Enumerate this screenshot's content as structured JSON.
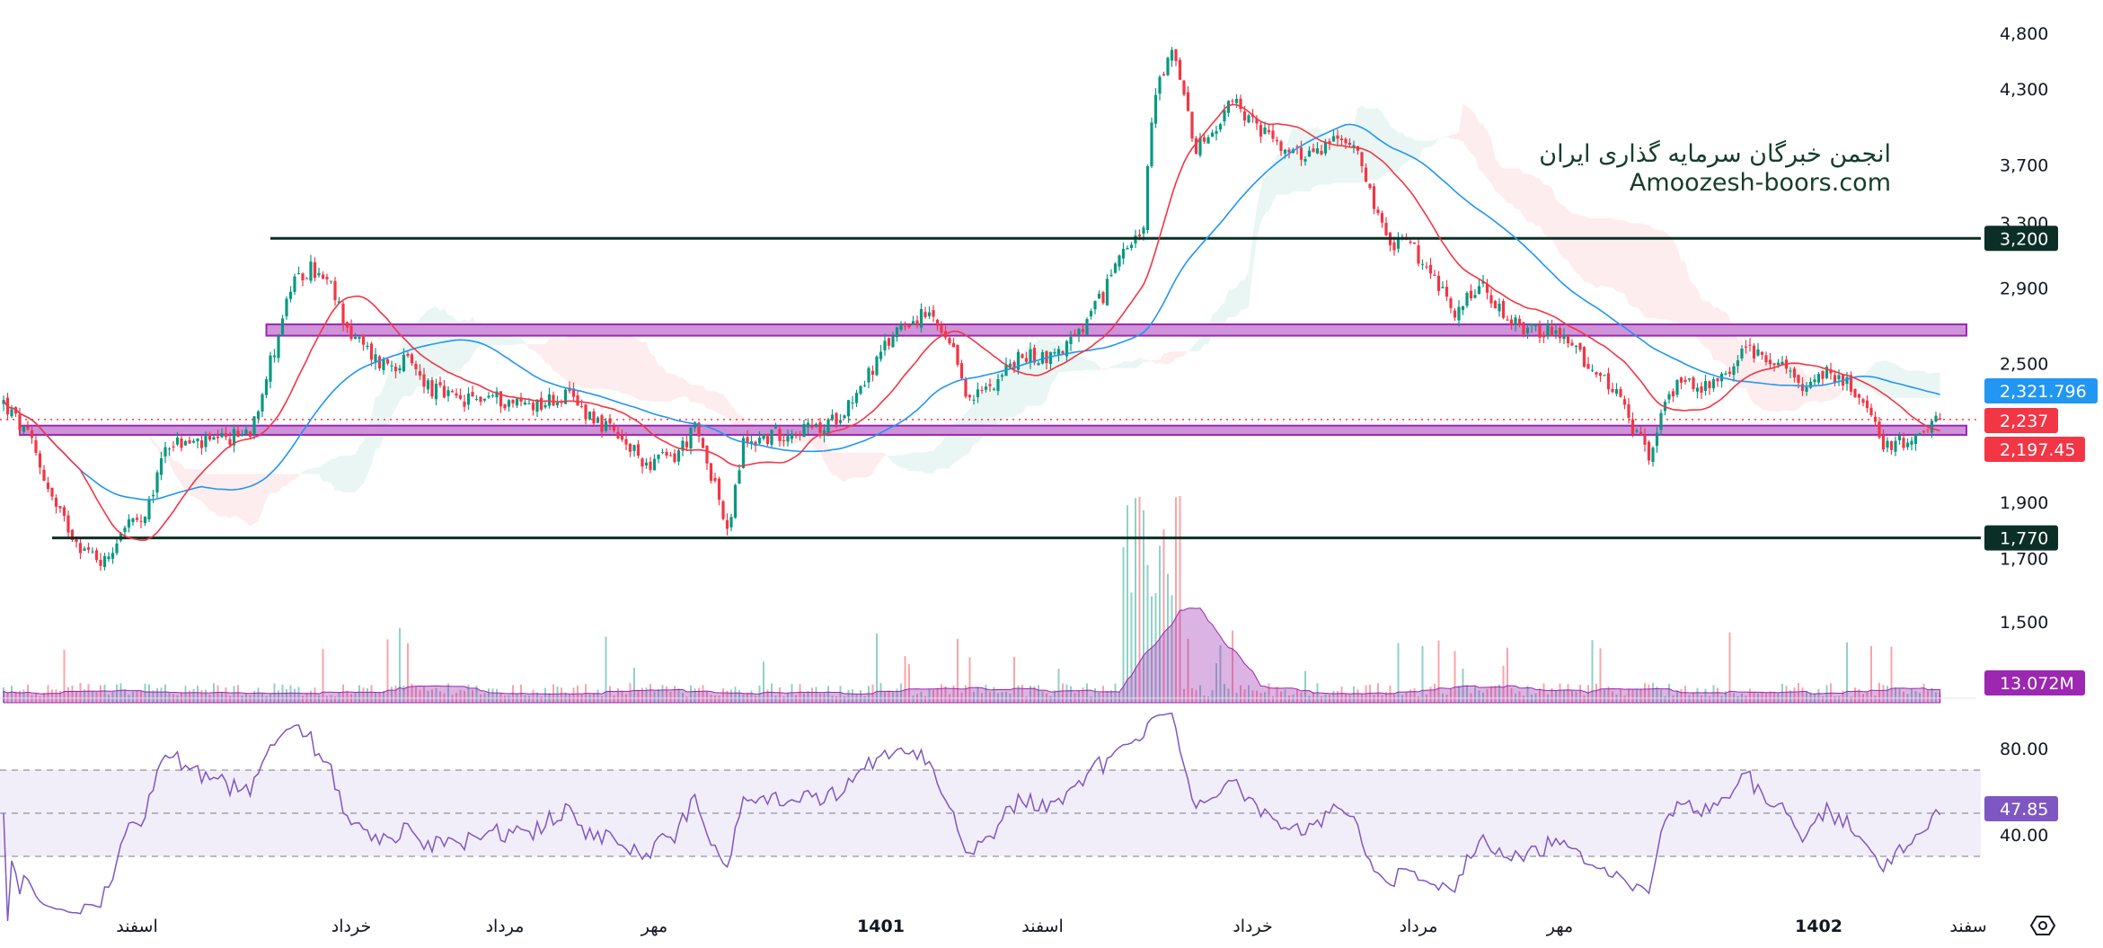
{
  "watermark": {
    "line1": "انجمن خبرگان سرمایه گذاری ایران",
    "line2": "Amoozesh-boors.com"
  },
  "colors": {
    "up": "#089981",
    "down": "#f23645",
    "ma_fast": "#f23645",
    "ma_slow": "#2196f3",
    "zone": "#ce93d8",
    "zone_border": "#9c27b0",
    "level": "#0b2f27",
    "volume": "#9c27b0",
    "rsi": "#7e57c2"
  },
  "chart_data": {
    "type": "candlestick",
    "price_axis": {
      "scale": "log",
      "ticks": [
        "4,800",
        "4,300",
        "3,700",
        "3,300",
        "2,900",
        "2,500",
        "1,900",
        "1,700",
        "1,500"
      ],
      "tick_values": [
        4800,
        4300,
        3700,
        3300,
        2900,
        2500,
        1900,
        1700,
        1500
      ],
      "range": [
        1400,
        4900
      ]
    },
    "time_axis": {
      "labels": [
        "اسفند",
        "خرداد",
        "مرداد",
        "مهر",
        "1401",
        "اسفند",
        "خرداد",
        "مرداد",
        "مهر",
        "1402",
        "سفند"
      ],
      "label_bars": [
        33,
        86,
        124,
        161,
        217,
        257,
        309,
        350,
        385,
        449,
        486
      ]
    },
    "bar_count": 480,
    "close_anchors": [
      [
        0,
        2312
      ],
      [
        7,
        2134
      ],
      [
        13,
        1872
      ],
      [
        20,
        1728
      ],
      [
        25,
        1690
      ],
      [
        30,
        1822
      ],
      [
        35,
        1822
      ],
      [
        40,
        2134
      ],
      [
        46,
        2134
      ],
      [
        53,
        2134
      ],
      [
        61,
        2193
      ],
      [
        66,
        2504
      ],
      [
        71,
        2898
      ],
      [
        76,
        3014
      ],
      [
        81,
        2898
      ],
      [
        86,
        2641
      ],
      [
        93,
        2504
      ],
      [
        100,
        2504
      ],
      [
        106,
        2375
      ],
      [
        113,
        2312
      ],
      [
        120,
        2344
      ],
      [
        126,
        2312
      ],
      [
        133,
        2312
      ],
      [
        139,
        2344
      ],
      [
        146,
        2250
      ],
      [
        153,
        2134
      ],
      [
        159,
        2053
      ],
      [
        166,
        2078
      ],
      [
        171,
        2193
      ],
      [
        176,
        1975
      ],
      [
        179,
        1775
      ],
      [
        183,
        2134
      ],
      [
        189,
        2163
      ],
      [
        196,
        2193
      ],
      [
        203,
        2193
      ],
      [
        209,
        2312
      ],
      [
        216,
        2504
      ],
      [
        222,
        2711
      ],
      [
        229,
        2745
      ],
      [
        236,
        2504
      ],
      [
        239,
        2312
      ],
      [
        246,
        2437
      ],
      [
        252,
        2533
      ],
      [
        259,
        2533
      ],
      [
        266,
        2641
      ],
      [
        272,
        2860
      ],
      [
        277,
        3178
      ],
      [
        282,
        3265
      ],
      [
        284,
        4040
      ],
      [
        286,
        4370
      ],
      [
        289,
        4608
      ],
      [
        292,
        4254
      ],
      [
        295,
        3827
      ],
      [
        299,
        3932
      ],
      [
        304,
        4203
      ],
      [
        309,
        4040
      ],
      [
        315,
        3827
      ],
      [
        322,
        3774
      ],
      [
        329,
        3877
      ],
      [
        335,
        3827
      ],
      [
        339,
        3441
      ],
      [
        342,
        3178
      ],
      [
        347,
        3178
      ],
      [
        352,
        3014
      ],
      [
        359,
        2784
      ],
      [
        365,
        2925
      ],
      [
        372,
        2711
      ],
      [
        378,
        2680
      ],
      [
        385,
        2641
      ],
      [
        392,
        2504
      ],
      [
        398,
        2375
      ],
      [
        403,
        2193
      ],
      [
        407,
        2078
      ],
      [
        410,
        2250
      ],
      [
        415,
        2437
      ],
      [
        422,
        2375
      ],
      [
        428,
        2504
      ],
      [
        432,
        2571
      ],
      [
        438,
        2504
      ],
      [
        445,
        2404
      ],
      [
        452,
        2470
      ],
      [
        457,
        2375
      ],
      [
        461,
        2250
      ],
      [
        465,
        2134
      ],
      [
        471,
        2134
      ],
      [
        478,
        2237
      ]
    ],
    "horizontal_levels": [
      {
        "price": 3200,
        "label": "3,200",
        "start_bar": 66
      },
      {
        "price": 1770,
        "label": "1,770",
        "start_bar": 12
      }
    ],
    "zones": [
      {
        "low": 2640,
        "high": 2700,
        "start_bar": 65
      },
      {
        "low": 2170,
        "high": 2210,
        "start_bar": 4
      }
    ],
    "current_price": {
      "value": 2237,
      "label": "2,237"
    },
    "ma_slow": {
      "period": 50,
      "label": "2,321.796"
    },
    "ma_fast": {
      "period": 20,
      "label": "2,197.45"
    },
    "volume": {
      "label": "13.072M"
    },
    "rsi": {
      "period": 14,
      "value_label": "47.85",
      "ticks": [
        "80.00",
        "40.00"
      ],
      "tick_values": [
        80,
        40
      ],
      "bands": [
        70,
        50,
        30
      ]
    }
  }
}
